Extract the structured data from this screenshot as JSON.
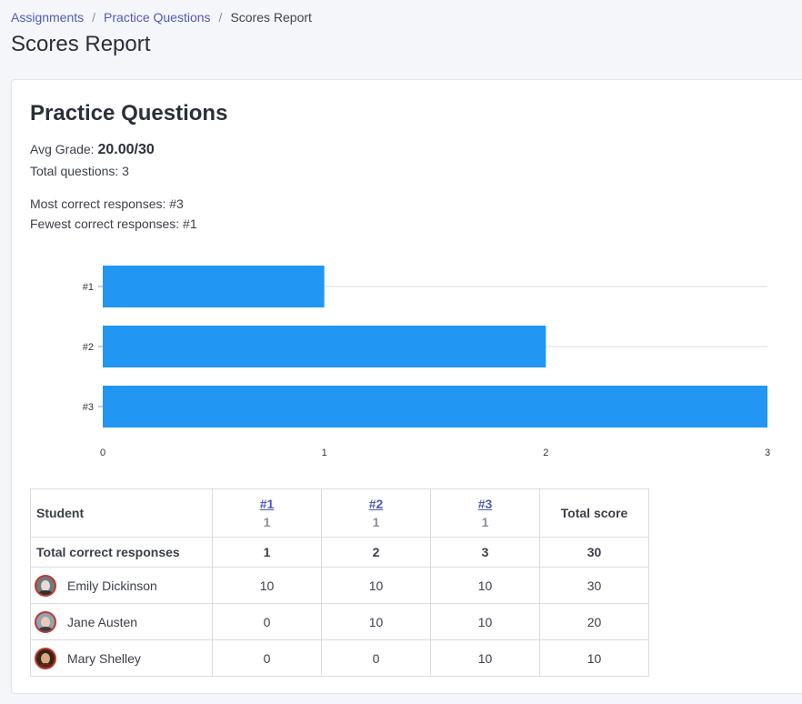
{
  "breadcrumb": {
    "items": [
      "Assignments",
      "Practice Questions"
    ],
    "current": "Scores Report",
    "separator": "/"
  },
  "page": {
    "title": "Scores Report"
  },
  "summary": {
    "title": "Practice Questions",
    "avg_label": "Avg Grade:",
    "avg_value": "20.00/30",
    "total_questions": "Total questions: 3",
    "most_correct": "Most correct responses: #3",
    "fewest_correct": "Fewest correct responses: #1"
  },
  "chart_data": {
    "type": "bar",
    "orientation": "horizontal",
    "categories": [
      "#1",
      "#2",
      "#3"
    ],
    "values": [
      1,
      2,
      3
    ],
    "xlim": [
      0,
      3
    ],
    "xticks": [
      0,
      1,
      2,
      3
    ],
    "color": "#2196f3",
    "title": "",
    "xlabel": "",
    "ylabel": ""
  },
  "table": {
    "student_header": "Student",
    "questions": [
      {
        "label": "#1",
        "points": "1"
      },
      {
        "label": "#2",
        "points": "1"
      },
      {
        "label": "#3",
        "points": "1"
      }
    ],
    "total_header": "Total score",
    "totals_row": {
      "label": "Total correct responses",
      "values": [
        "1",
        "2",
        "3",
        "30"
      ]
    },
    "students": [
      {
        "name": "Emily Dickinson",
        "scores": [
          "10",
          "10",
          "10"
        ],
        "total": "30",
        "avatar": {
          "bg": "#6d7a80",
          "face": "#e8dcd0",
          "body": "#2f2f33"
        }
      },
      {
        "name": "Jane Austen",
        "scores": [
          "0",
          "10",
          "10"
        ],
        "total": "20",
        "avatar": {
          "bg": "#8fa3b5",
          "face": "#e9c9b4",
          "body": "#3d3a4a"
        }
      },
      {
        "name": "Mary Shelley",
        "scores": [
          "0",
          "0",
          "10"
        ],
        "total": "10",
        "avatar": {
          "bg": "#3a2418",
          "face": "#d9a882",
          "body": "#5a2a1a"
        }
      }
    ]
  }
}
